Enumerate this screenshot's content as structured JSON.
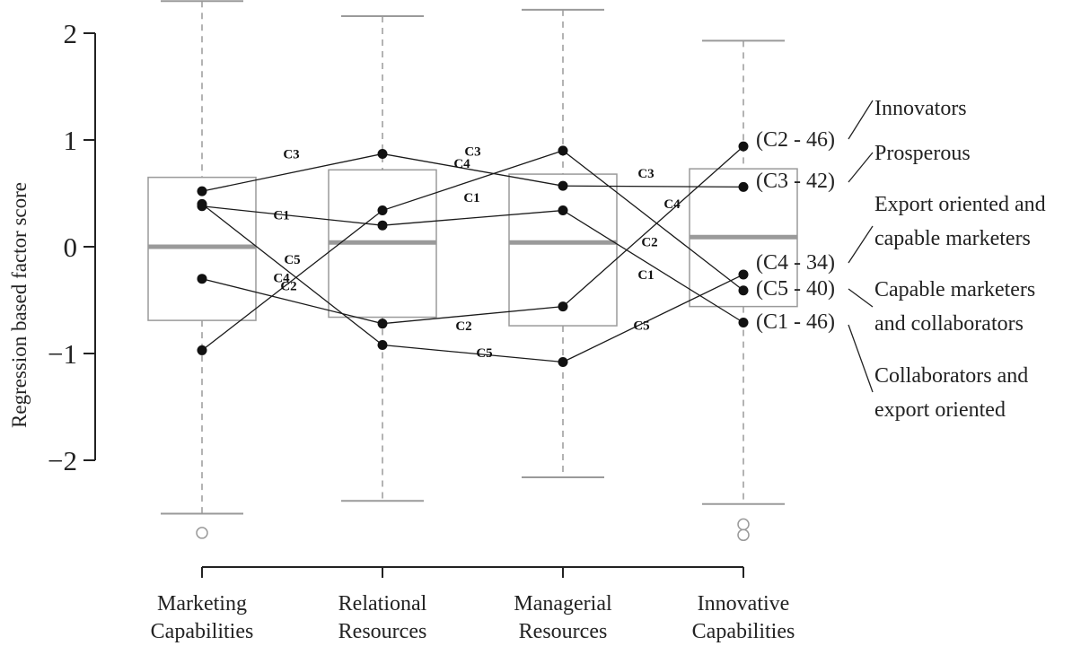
{
  "chart_data": {
    "type": "box",
    "title": "",
    "xlabel": "",
    "ylabel": "Regression based factor score",
    "ylim": [
      -2.6,
      2.3
    ],
    "yticks": [
      -2,
      -1,
      0,
      1,
      2
    ],
    "ytick_labels": [
      "−2",
      "−1",
      "0",
      "1",
      "2"
    ],
    "categories": [
      {
        "line1": "Marketing",
        "line2": "Capabilities"
      },
      {
        "line1": "Relational",
        "line2": "Resources"
      },
      {
        "line1": "Managerial",
        "line2": "Resources"
      },
      {
        "line1": "Innovative",
        "line2": "Capabilities"
      }
    ],
    "boxes": [
      {
        "whisker_low": -2.5,
        "q1": -0.69,
        "median": 0.0,
        "q3": 0.65,
        "whisker_high": 2.3,
        "outliers": [
          -2.68
        ]
      },
      {
        "whisker_low": -2.38,
        "q1": -0.66,
        "median": 0.04,
        "q3": 0.72,
        "whisker_high": 2.16,
        "outliers": []
      },
      {
        "whisker_low": -2.16,
        "q1": -0.74,
        "median": 0.04,
        "q3": 0.68,
        "whisker_high": 2.22,
        "outliers": []
      },
      {
        "whisker_low": -2.41,
        "q1": -0.56,
        "median": 0.09,
        "q3": 0.73,
        "whisker_high": 1.93,
        "outliers": [
          -2.6,
          -2.7
        ]
      }
    ],
    "series": [
      {
        "name": "C1",
        "values": [
          0.38,
          0.2,
          0.34,
          -0.71
        ],
        "end_label": "(C1 - 46)",
        "profile": [
          "Collaborators and",
          "export oriented"
        ]
      },
      {
        "name": "C2",
        "values": [
          -0.3,
          -0.72,
          -0.56,
          0.94
        ],
        "end_label": "(C2 - 46)",
        "profile": [
          "Innovators"
        ]
      },
      {
        "name": "C3",
        "values": [
          0.52,
          0.87,
          0.57,
          0.56
        ],
        "end_label": "(C3 - 42)",
        "profile": [
          "Prosperous"
        ]
      },
      {
        "name": "C4",
        "values": [
          -0.97,
          0.34,
          0.9,
          -0.41
        ],
        "end_label": "(C4 - 34)",
        "profile": [
          "Export oriented and",
          "capable marketers"
        ]
      },
      {
        "name": "C5",
        "values": [
          0.4,
          -0.92,
          -1.08,
          -0.26
        ],
        "end_label": "(C5 - 40)",
        "profile": [
          "Capable marketers",
          "and collaborators"
        ]
      }
    ],
    "segment_labels": [
      {
        "series": "C3",
        "segment": 0,
        "text": "C3"
      },
      {
        "series": "C5",
        "segment": 0,
        "text": "C5"
      },
      {
        "series": "C4",
        "segment": 0,
        "text": "C4"
      },
      {
        "series": "C2",
        "segment": 0,
        "text": "C2"
      },
      {
        "series": "C1",
        "segment": 0,
        "text": "C1"
      },
      {
        "series": "C3",
        "segment": 1,
        "text": "C3"
      },
      {
        "series": "C1",
        "segment": 1,
        "text": "C1"
      },
      {
        "series": "C4",
        "segment": 1,
        "text": "C4"
      },
      {
        "series": "C5",
        "segment": 1,
        "text": "C5"
      },
      {
        "series": "C2",
        "segment": 1,
        "text": "C2"
      },
      {
        "series": "C3",
        "segment": 2,
        "text": "C3"
      },
      {
        "series": "C4",
        "segment": 2,
        "text": "C4"
      },
      {
        "series": "C2",
        "segment": 2,
        "text": "C2"
      },
      {
        "series": "C1",
        "segment": 2,
        "text": "C1"
      },
      {
        "series": "C5",
        "segment": 2,
        "text": "C5"
      }
    ],
    "end_label_order": [
      "C2",
      "C3",
      "C4",
      "C5",
      "C1"
    ],
    "profile_order": [
      "C2",
      "C3",
      "C4",
      "C5",
      "C1"
    ],
    "grid": false,
    "colors": {
      "box": "#9a9a9a",
      "median": "#9a9a9a",
      "whisker": "#9a9a9a",
      "line": "#1a1a1a",
      "point": "#111111",
      "axis": "#222222"
    }
  }
}
